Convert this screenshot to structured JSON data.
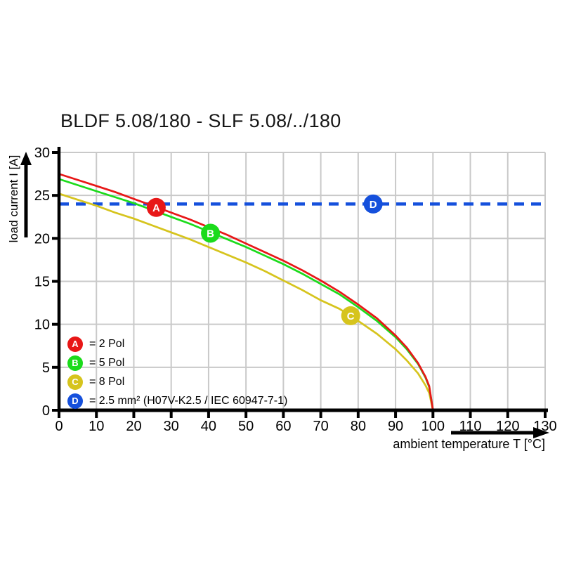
{
  "page": {
    "background": "#ffffff"
  },
  "colors": {
    "grid": "#c9c9c9",
    "axis": "#000000",
    "text": "#000000",
    "marker_letter": "#ffffff"
  },
  "chart_data": {
    "type": "line",
    "title": "BLDF 5.08/180 - SLF 5.08/../180",
    "xlabel": "ambient temperature T [°C]",
    "ylabel": "load current I [A]",
    "xlim": [
      0,
      130
    ],
    "ylim": [
      0,
      30
    ],
    "x_ticks": [
      0,
      10,
      20,
      30,
      40,
      50,
      60,
      70,
      80,
      90,
      100,
      110,
      120,
      130
    ],
    "y_ticks": [
      0,
      5,
      10,
      15,
      20,
      25,
      30
    ],
    "grid": true,
    "legend_position": "inside-bottom-left",
    "series": [
      {
        "id": "A",
        "name": "2 Pol",
        "color": "#e81717",
        "style": "solid",
        "x": [
          0,
          5,
          10,
          15,
          20,
          25,
          30,
          35,
          40,
          45,
          50,
          55,
          60,
          65,
          70,
          75,
          80,
          85,
          90,
          93,
          96,
          98,
          99,
          100
        ],
        "y": [
          27.5,
          26.8,
          26.1,
          25.4,
          24.6,
          23.8,
          23.0,
          22.2,
          21.3,
          20.4,
          19.4,
          18.4,
          17.4,
          16.3,
          15.1,
          13.8,
          12.3,
          10.7,
          8.7,
          7.3,
          5.5,
          3.9,
          2.8,
          0
        ],
        "marker": {
          "letter": "A",
          "t": 26,
          "i": 23.6
        }
      },
      {
        "id": "B",
        "name": "5 Pol",
        "color": "#1bdb1b",
        "style": "solid",
        "x": [
          0,
          5,
          10,
          15,
          20,
          25,
          30,
          35,
          40,
          45,
          50,
          55,
          60,
          65,
          70,
          75,
          80,
          85,
          90,
          93,
          96,
          98,
          99,
          100
        ],
        "y": [
          26.9,
          26.2,
          25.5,
          24.8,
          24.1,
          23.3,
          22.5,
          21.7,
          20.8,
          19.9,
          19.0,
          18.0,
          17.0,
          15.9,
          14.7,
          13.5,
          12.0,
          10.4,
          8.5,
          7.1,
          5.4,
          3.8,
          2.7,
          0
        ],
        "marker": {
          "letter": "B",
          "t": 40.5,
          "i": 20.6
        }
      },
      {
        "id": "C",
        "name": "8 Pol",
        "color": "#d6c41d",
        "style": "solid",
        "x": [
          0,
          5,
          10,
          15,
          20,
          25,
          30,
          35,
          40,
          45,
          50,
          55,
          60,
          65,
          70,
          75,
          80,
          85,
          90,
          93,
          96,
          98,
          99,
          100
        ],
        "y": [
          25.2,
          24.5,
          23.8,
          23.0,
          22.3,
          21.5,
          20.7,
          19.9,
          19.0,
          18.1,
          17.2,
          16.2,
          15.1,
          14.0,
          12.8,
          11.8,
          10.4,
          8.9,
          7.1,
          5.8,
          4.3,
          2.9,
          2.0,
          0
        ],
        "marker": {
          "letter": "C",
          "t": 78,
          "i": 11.0
        }
      },
      {
        "id": "D",
        "name": "2.5 mm² (H07V-K2.5 / IEC 60947-7-1)",
        "color": "#1550dc",
        "style": "dashed",
        "x": [
          0,
          130
        ],
        "y": [
          24,
          24
        ],
        "marker": {
          "letter": "D",
          "t": 84,
          "i": 24
        }
      }
    ]
  },
  "legend": {
    "items": [
      {
        "letter": "A",
        "text": "= 2 Pol",
        "color": "#e81717"
      },
      {
        "letter": "B",
        "text": "= 5 Pol",
        "color": "#1bdb1b"
      },
      {
        "letter": "C",
        "text": "= 8 Pol",
        "color": "#d6c41d"
      },
      {
        "letter": "D",
        "text": "= 2.5 mm² (H07V-K2.5 / IEC 60947-7-1)",
        "color": "#1550dc"
      }
    ]
  }
}
